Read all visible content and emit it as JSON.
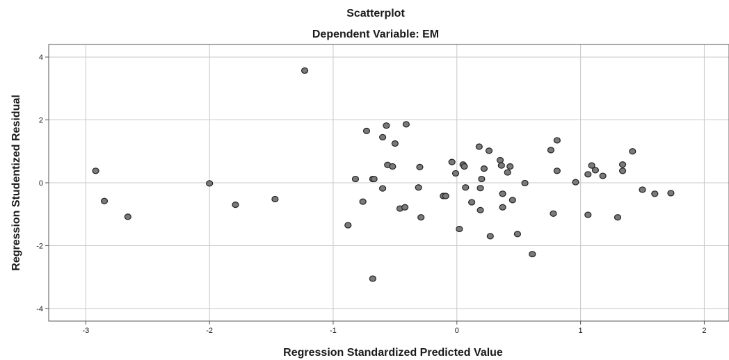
{
  "chart_data": {
    "type": "scatter",
    "title": "Scatterplot",
    "subtitle": "Dependent Variable: EM",
    "xlabel": "Regression Standardized Predicted Value",
    "ylabel": "Regression Studentized Residual",
    "xlim": [
      -3.3,
      2.2
    ],
    "ylim": [
      -4.4,
      4.4
    ],
    "x_ticks": [
      -3,
      -2,
      -1,
      0,
      1,
      2
    ],
    "y_ticks": [
      -4,
      -2,
      0,
      2,
      4
    ],
    "grid": true,
    "point_color": "#7a7a7a",
    "points": [
      {
        "x": -2.92,
        "y": 0.38
      },
      {
        "x": -2.85,
        "y": -0.58
      },
      {
        "x": -2.66,
        "y": -1.08
      },
      {
        "x": -2.0,
        "y": -0.02
      },
      {
        "x": -1.79,
        "y": -0.7
      },
      {
        "x": -1.47,
        "y": -0.52
      },
      {
        "x": -1.23,
        "y": 3.57
      },
      {
        "x": -0.88,
        "y": -1.35
      },
      {
        "x": -0.82,
        "y": 0.12
      },
      {
        "x": -0.76,
        "y": -0.6
      },
      {
        "x": -0.73,
        "y": 1.65
      },
      {
        "x": -0.68,
        "y": 0.12
      },
      {
        "x": -0.67,
        "y": 0.12
      },
      {
        "x": -0.68,
        "y": -3.05
      },
      {
        "x": -0.6,
        "y": 1.45
      },
      {
        "x": -0.6,
        "y": -0.18
      },
      {
        "x": -0.57,
        "y": 1.82
      },
      {
        "x": -0.56,
        "y": 0.57
      },
      {
        "x": -0.52,
        "y": 0.52
      },
      {
        "x": -0.5,
        "y": 1.25
      },
      {
        "x": -0.46,
        "y": -0.82
      },
      {
        "x": -0.42,
        "y": -0.78
      },
      {
        "x": -0.41,
        "y": 1.86
      },
      {
        "x": -0.3,
        "y": 0.5
      },
      {
        "x": -0.31,
        "y": -0.15
      },
      {
        "x": -0.29,
        "y": -1.1
      },
      {
        "x": -0.11,
        "y": -0.42
      },
      {
        "x": -0.09,
        "y": -0.42
      },
      {
        "x": -0.04,
        "y": 0.66
      },
      {
        "x": -0.01,
        "y": 0.3
      },
      {
        "x": 0.02,
        "y": -1.47
      },
      {
        "x": 0.05,
        "y": 0.58
      },
      {
        "x": 0.06,
        "y": 0.52
      },
      {
        "x": 0.07,
        "y": -0.15
      },
      {
        "x": 0.12,
        "y": -0.62
      },
      {
        "x": 0.18,
        "y": 1.15
      },
      {
        "x": 0.19,
        "y": -0.87
      },
      {
        "x": 0.19,
        "y": -0.17
      },
      {
        "x": 0.2,
        "y": 0.12
      },
      {
        "x": 0.22,
        "y": 0.45
      },
      {
        "x": 0.26,
        "y": 1.02
      },
      {
        "x": 0.27,
        "y": -1.7
      },
      {
        "x": 0.35,
        "y": 0.72
      },
      {
        "x": 0.36,
        "y": 0.55
      },
      {
        "x": 0.37,
        "y": -0.35
      },
      {
        "x": 0.37,
        "y": -0.78
      },
      {
        "x": 0.41,
        "y": 0.33
      },
      {
        "x": 0.43,
        "y": 0.52
      },
      {
        "x": 0.45,
        "y": -0.55
      },
      {
        "x": 0.49,
        "y": -1.63
      },
      {
        "x": 0.55,
        "y": -0.01
      },
      {
        "x": 0.61,
        "y": -2.27
      },
      {
        "x": 0.76,
        "y": 1.04
      },
      {
        "x": 0.78,
        "y": -0.98
      },
      {
        "x": 0.81,
        "y": 1.35
      },
      {
        "x": 0.81,
        "y": 0.38
      },
      {
        "x": 0.96,
        "y": 0.02
      },
      {
        "x": 1.06,
        "y": 0.27
      },
      {
        "x": 1.06,
        "y": -1.02
      },
      {
        "x": 1.09,
        "y": 0.55
      },
      {
        "x": 1.12,
        "y": 0.4
      },
      {
        "x": 1.18,
        "y": 0.22
      },
      {
        "x": 1.3,
        "y": -1.1
      },
      {
        "x": 1.34,
        "y": 0.58
      },
      {
        "x": 1.34,
        "y": 0.38
      },
      {
        "x": 1.42,
        "y": 1.0
      },
      {
        "x": 1.5,
        "y": -0.22
      },
      {
        "x": 1.6,
        "y": -0.35
      },
      {
        "x": 1.73,
        "y": -0.33
      }
    ]
  }
}
